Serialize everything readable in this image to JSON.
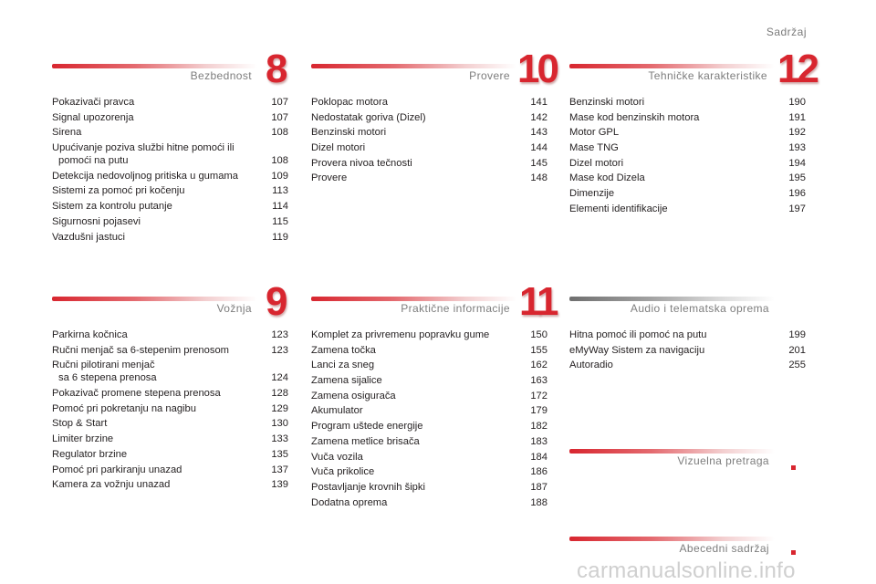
{
  "page_label": "Sadržaj",
  "sections": {
    "s8": {
      "title": "Bezbednost",
      "number": "8",
      "entries": [
        {
          "t": "Pokazivači pravca",
          "p": "107"
        },
        {
          "t": "Signal upozorenja",
          "p": "107"
        },
        {
          "t": "Sirena",
          "p": "108"
        },
        {
          "t": "Upućivanje poziva službi hitne pomoći ili",
          "t2": "pomoći na putu",
          "p": "108"
        },
        {
          "t": "Detekcija nedovoljnog pritiska u gumama",
          "p": "109"
        },
        {
          "t": "Sistemi za pomoć pri kočenju",
          "p": "113"
        },
        {
          "t": "Sistem za kontrolu putanje",
          "p": "114"
        },
        {
          "t": "Sigurnosni pojasevi",
          "p": "115"
        },
        {
          "t": "Vazdušni jastuci",
          "p": "119"
        }
      ]
    },
    "s10": {
      "title": "Provere",
      "number": "10",
      "entries": [
        {
          "t": "Poklopac motora",
          "p": "141"
        },
        {
          "t": "Nedostatak goriva (Dizel)",
          "p": "142"
        },
        {
          "t": "Benzinski motori",
          "p": "143"
        },
        {
          "t": "Dizel motori",
          "p": "144"
        },
        {
          "t": "Provera nivoa tečnosti",
          "p": "145"
        },
        {
          "t": "Provere",
          "p": "148"
        }
      ]
    },
    "s12": {
      "title": "Tehničke karakteristike",
      "number": "12",
      "entries": [
        {
          "t": "Benzinski motori",
          "p": "190"
        },
        {
          "t": "Mase kod benzinskih motora",
          "p": "191"
        },
        {
          "t": "Motor GPL",
          "p": "192"
        },
        {
          "t": "Mase TNG",
          "p": "193"
        },
        {
          "t": "Dizel motori",
          "p": "194"
        },
        {
          "t": "Mase kod Dizela",
          "p": "195"
        },
        {
          "t": "Dimenzije",
          "p": "196"
        },
        {
          "t": "Elementi identifikacije",
          "p": "197"
        }
      ]
    },
    "s9": {
      "title": "Vožnja",
      "number": "9",
      "entries": [
        {
          "t": "Parkirna kočnica",
          "p": "123"
        },
        {
          "t": "Ručni menjač sa 6-stepenim prenosom",
          "p": "123"
        },
        {
          "t": "Ručni pilotirani menjač",
          "t2": "sa 6 stepena prenosa",
          "p": "124"
        },
        {
          "t": "Pokazivač promene stepena prenosa",
          "p": "128"
        },
        {
          "t": "Pomoć pri pokretanju na nagibu",
          "p": "129"
        },
        {
          "t": "Stop & Start",
          "p": "130"
        },
        {
          "t": "Limiter brzine",
          "p": "133"
        },
        {
          "t": "Regulator brzine",
          "p": "135"
        },
        {
          "t": "Pomoć pri parkiranju unazad",
          "p": "137"
        },
        {
          "t": "Kamera za vožnju unazad",
          "p": "139"
        }
      ]
    },
    "s11": {
      "title": "Praktične informacije",
      "number": "11",
      "entries": [
        {
          "t": "Komplet za privremenu popravku gume",
          "p": "150"
        },
        {
          "t": "Zamena točka",
          "p": "155"
        },
        {
          "t": "Lanci za sneg",
          "p": "162"
        },
        {
          "t": "Zamena sijalice",
          "p": "163"
        },
        {
          "t": "Zamena osigurača",
          "p": "172"
        },
        {
          "t": "Akumulator",
          "p": "179"
        },
        {
          "t": "Program uštede energije",
          "p": "182"
        },
        {
          "t": "Zamena metlice brisača",
          "p": "183"
        },
        {
          "t": "Vuča vozila",
          "p": "184"
        },
        {
          "t": "Vuča prikolice",
          "p": "186"
        },
        {
          "t": "Postavljanje krovnih šipki",
          "p": "187"
        },
        {
          "t": "Dodatna oprema",
          "p": "188"
        }
      ]
    },
    "audio": {
      "title": "Audio i telematska oprema",
      "entries": [
        {
          "t": "Hitna pomoć ili pomoć na putu",
          "p": "199"
        },
        {
          "t": "eMyWay Sistem za navigaciju",
          "p": "201"
        },
        {
          "t": "Autoradio",
          "p": "255"
        }
      ]
    },
    "visual": {
      "title": "Vizuelna pretraga"
    },
    "index": {
      "title": "Abecedni sadržaj"
    }
  },
  "watermark": "carmanualsonline.info",
  "colors": {
    "accent": "#d8262f",
    "text": "#231f20",
    "muted": "#7d7d7d"
  }
}
